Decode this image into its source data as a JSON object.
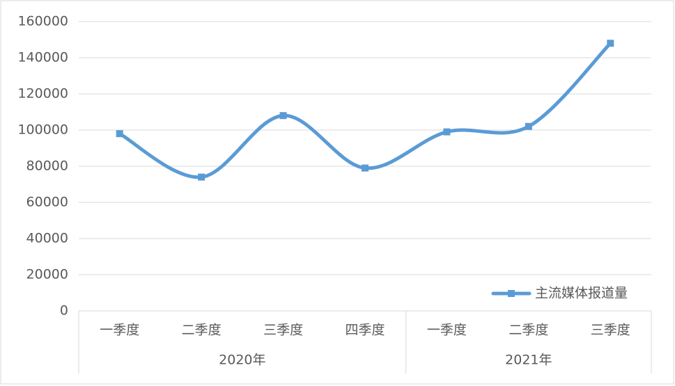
{
  "chart_data": {
    "type": "line",
    "category_groups": [
      {
        "label": "2020年",
        "categories": [
          "一季度",
          "二季度",
          "三季度",
          "四季度"
        ]
      },
      {
        "label": "2021年",
        "categories": [
          "一季度",
          "二季度",
          "三季度"
        ]
      }
    ],
    "series": [
      {
        "name": "主流媒体报道量",
        "color": "#5b9bd5",
        "values": [
          98000,
          74000,
          108000,
          79000,
          99000,
          102000,
          148000
        ]
      }
    ],
    "ylim": [
      0,
      160000
    ],
    "yticks": [
      0,
      20000,
      40000,
      60000,
      80000,
      100000,
      120000,
      140000,
      160000
    ],
    "grid": true,
    "smooth": true,
    "legend": "bottom-right"
  }
}
